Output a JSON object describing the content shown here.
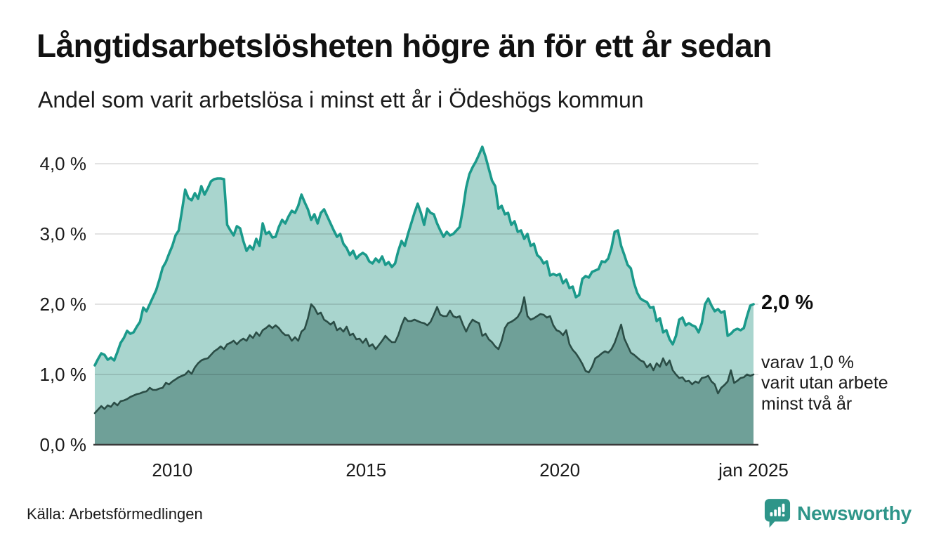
{
  "header": {
    "title": "Långtidsarbetslösheten högre än för ett år sedan",
    "subtitle": "Andel som varit arbetslösa i minst ett år i Ödeshögs kommun"
  },
  "annotations": {
    "latest_total": "2,0 %",
    "two_year_note": "varav 1,0 %\nvarit utan arbete\nminst två år"
  },
  "footer": {
    "source": "Källa: Arbetsförmedlingen",
    "brand": "Newsworthy",
    "brand_color": "#2e9589"
  },
  "chart_data": {
    "type": "area",
    "title": "Långtidsarbetslösheten högre än för ett år sedan",
    "subtitle": "Andel som varit arbetslösa i minst ett år i Ödeshögs kommun",
    "unit": "%",
    "x_start": 2008.0,
    "x_end": 2025.0,
    "points_per_year": 12,
    "ylim": [
      0,
      4.43
    ],
    "grid": true,
    "grid_color": "rgba(0,0,0,0.11)",
    "axis_color": "#3a3a3a",
    "yticks": [
      {
        "v": 0,
        "label": "0,0 %"
      },
      {
        "v": 1,
        "label": "1,0 %"
      },
      {
        "v": 2,
        "label": "2,0 %"
      },
      {
        "v": 3,
        "label": "3,0 %"
      },
      {
        "v": 4,
        "label": "4,0 %"
      }
    ],
    "xticks": [
      {
        "v": 2010,
        "label": "2010"
      },
      {
        "v": 2015,
        "label": "2015"
      },
      {
        "v": 2020,
        "label": "2020"
      },
      {
        "v": 2025,
        "label": "jan 2025"
      }
    ],
    "series": [
      {
        "name": "Andel arbetslösa minst ett år",
        "line_color": "#1b9a8b",
        "fill_color": "#a9d5ce",
        "line_width": 3.6,
        "values": [
          1.13,
          1.22,
          1.3,
          1.28,
          1.21,
          1.24,
          1.2,
          1.32,
          1.45,
          1.52,
          1.62,
          1.58,
          1.6,
          1.68,
          1.75,
          1.95,
          1.9,
          2.0,
          2.1,
          2.2,
          2.35,
          2.52,
          2.6,
          2.72,
          2.83,
          2.98,
          3.05,
          3.33,
          3.63,
          3.51,
          3.48,
          3.58,
          3.5,
          3.68,
          3.56,
          3.65,
          3.75,
          3.78,
          3.79,
          3.79,
          3.78,
          3.13,
          3.05,
          2.98,
          3.11,
          3.08,
          2.9,
          2.76,
          2.83,
          2.78,
          2.93,
          2.83,
          3.15,
          3.0,
          3.03,
          2.95,
          2.96,
          3.1,
          3.2,
          3.15,
          3.25,
          3.33,
          3.3,
          3.4,
          3.56,
          3.45,
          3.35,
          3.2,
          3.28,
          3.15,
          3.3,
          3.35,
          3.25,
          3.15,
          3.05,
          2.96,
          3.0,
          2.86,
          2.8,
          2.7,
          2.76,
          2.65,
          2.7,
          2.73,
          2.7,
          2.61,
          2.58,
          2.65,
          2.6,
          2.68,
          2.56,
          2.6,
          2.53,
          2.58,
          2.76,
          2.9,
          2.83,
          3.0,
          3.15,
          3.3,
          3.43,
          3.3,
          3.13,
          3.36,
          3.3,
          3.28,
          3.15,
          3.05,
          2.96,
          3.03,
          2.98,
          3.0,
          3.05,
          3.1,
          3.35,
          3.66,
          3.85,
          3.95,
          4.03,
          4.13,
          4.24,
          4.1,
          3.93,
          3.76,
          3.68,
          3.36,
          3.4,
          3.28,
          3.3,
          3.13,
          3.18,
          3.03,
          3.05,
          2.93,
          3.0,
          2.83,
          2.86,
          2.7,
          2.66,
          2.58,
          2.61,
          2.41,
          2.43,
          2.41,
          2.43,
          2.3,
          2.35,
          2.23,
          2.25,
          2.1,
          2.13,
          2.36,
          2.4,
          2.38,
          2.46,
          2.48,
          2.5,
          2.61,
          2.6,
          2.65,
          2.8,
          3.03,
          3.05,
          2.83,
          2.7,
          2.56,
          2.51,
          2.3,
          2.16,
          2.08,
          2.05,
          2.03,
          1.95,
          1.96,
          1.76,
          1.8,
          1.6,
          1.63,
          1.5,
          1.43,
          1.55,
          1.78,
          1.81,
          1.7,
          1.73,
          1.7,
          1.68,
          1.6,
          1.73,
          2.0,
          2.08,
          1.98,
          1.9,
          1.93,
          1.88,
          1.9,
          1.55,
          1.58,
          1.63,
          1.65,
          1.63,
          1.66,
          1.83,
          1.98,
          2.0
        ]
      },
      {
        "name": "Varav utan arbete minst två år",
        "line_color": "#2b4d46",
        "fill_color": "#6fa098",
        "line_width": 2.6,
        "values": [
          0.45,
          0.5,
          0.55,
          0.51,
          0.56,
          0.54,
          0.6,
          0.56,
          0.62,
          0.63,
          0.65,
          0.68,
          0.7,
          0.72,
          0.73,
          0.75,
          0.76,
          0.81,
          0.78,
          0.78,
          0.8,
          0.81,
          0.88,
          0.86,
          0.9,
          0.93,
          0.96,
          0.98,
          1.0,
          1.05,
          1.01,
          1.1,
          1.16,
          1.2,
          1.22,
          1.23,
          1.28,
          1.33,
          1.36,
          1.4,
          1.36,
          1.43,
          1.45,
          1.48,
          1.43,
          1.48,
          1.51,
          1.48,
          1.56,
          1.52,
          1.6,
          1.55,
          1.63,
          1.66,
          1.7,
          1.66,
          1.7,
          1.66,
          1.6,
          1.56,
          1.56,
          1.48,
          1.53,
          1.48,
          1.61,
          1.65,
          1.8,
          2.0,
          1.95,
          1.86,
          1.88,
          1.78,
          1.75,
          1.71,
          1.75,
          1.63,
          1.66,
          1.61,
          1.68,
          1.56,
          1.58,
          1.5,
          1.51,
          1.45,
          1.51,
          1.4,
          1.43,
          1.36,
          1.42,
          1.48,
          1.55,
          1.5,
          1.46,
          1.46,
          1.56,
          1.7,
          1.81,
          1.76,
          1.76,
          1.78,
          1.76,
          1.74,
          1.73,
          1.7,
          1.75,
          1.85,
          1.96,
          1.85,
          1.83,
          1.83,
          1.91,
          1.83,
          1.81,
          1.83,
          1.71,
          1.61,
          1.71,
          1.78,
          1.75,
          1.73,
          1.55,
          1.58,
          1.5,
          1.46,
          1.4,
          1.36,
          1.48,
          1.66,
          1.73,
          1.75,
          1.78,
          1.82,
          1.9,
          2.1,
          1.83,
          1.78,
          1.8,
          1.83,
          1.86,
          1.85,
          1.81,
          1.83,
          1.7,
          1.63,
          1.61,
          1.56,
          1.63,
          1.43,
          1.35,
          1.3,
          1.23,
          1.15,
          1.05,
          1.03,
          1.11,
          1.23,
          1.26,
          1.3,
          1.33,
          1.31,
          1.36,
          1.45,
          1.58,
          1.71,
          1.51,
          1.41,
          1.31,
          1.28,
          1.24,
          1.2,
          1.18,
          1.1,
          1.15,
          1.06,
          1.16,
          1.11,
          1.23,
          1.13,
          1.2,
          1.06,
          1.0,
          0.95,
          0.96,
          0.9,
          0.91,
          0.86,
          0.9,
          0.88,
          0.95,
          0.96,
          0.98,
          0.9,
          0.86,
          0.73,
          0.81,
          0.85,
          0.9,
          1.06,
          0.88,
          0.91,
          0.95,
          0.96,
          1.0,
          0.98,
          1.0
        ]
      }
    ],
    "annotations": [
      {
        "text": "2,0 %",
        "attached_to": "series 0 endpoint"
      },
      {
        "text": "varav 1,0 % varit utan arbete minst två år",
        "attached_to": "series 1 endpoint"
      }
    ]
  }
}
